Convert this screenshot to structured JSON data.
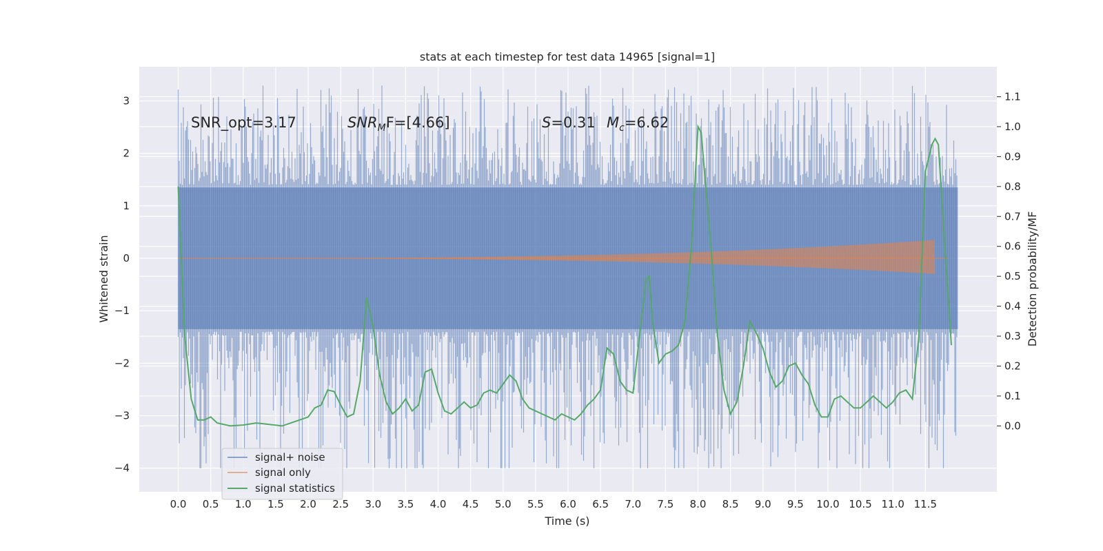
{
  "chart_data": {
    "type": "line",
    "title": "stats at each timestep for test data 14965 [signal=1]",
    "xlabel": "Time (s)",
    "ylabel_left": "Whitened strain",
    "ylabel_right": "Detection probability/MF",
    "xlim": [
      -0.6,
      12.6
    ],
    "ylim_left": [
      -4.45,
      3.65
    ],
    "ylim_right": [
      -0.22,
      1.2
    ],
    "x_ticks": [
      0.0,
      0.5,
      1.0,
      1.5,
      2.0,
      2.5,
      3.0,
      3.5,
      4.0,
      4.5,
      5.0,
      5.5,
      6.0,
      6.5,
      7.0,
      7.5,
      8.0,
      8.5,
      9.0,
      9.5,
      10.0,
      10.5,
      11.0,
      11.5
    ],
    "x_tick_labels": [
      "0.0",
      "0.5",
      "1.0",
      "1.5",
      "2.0",
      "2.5",
      "3.0",
      "3.5",
      "4.0",
      "4.5",
      "5.0",
      "5.5",
      "6.0",
      "6.5",
      "7.0",
      "7.5",
      "8.0",
      "8.5",
      "9.0",
      "9.5",
      "10.0",
      "10.5",
      "11.0",
      "11.5"
    ],
    "y_left_ticks": [
      3,
      2,
      1,
      0,
      -1,
      -2,
      -3,
      -4
    ],
    "y_left_tick_labels": [
      "3",
      "2",
      "1",
      "0",
      "−1",
      "−2",
      "−3",
      "−4"
    ],
    "y_right_ticks": [
      1.1,
      1.0,
      0.9,
      0.8,
      0.7,
      0.6,
      0.5,
      0.4,
      0.3,
      0.2,
      0.1,
      0.0
    ],
    "y_right_tick_labels": [
      "1.1",
      "1.0",
      "0.9",
      "0.8",
      "0.7",
      "0.6",
      "0.5",
      "0.4",
      "0.3",
      "0.2",
      "0.1",
      "0.0"
    ],
    "grid": true,
    "legend_position": "lower-left",
    "annotations": {
      "snr_opt": "SNR_opt=3.17",
      "snr_mf_main": "SNR",
      "snr_mf_sub": "M",
      "snr_mf_rest": "F=[4.66]",
      "s_main": "S",
      "s_rest": "=0.31",
      "mc_main": "M",
      "mc_sub": "c",
      "mc_rest": "=6.62"
    },
    "series": [
      {
        "name": "signal+ noise",
        "color": "#4c72b0",
        "kind": "noise_band",
        "x_range": [
          0.0,
          12.0
        ],
        "band_low": -1.35,
        "band_high": 1.35,
        "peak_max": 3.3,
        "peak_min": -4.0
      },
      {
        "name": "signal only",
        "color": "#dd8452",
        "kind": "chirp",
        "x_range": [
          0.0,
          11.85
        ],
        "peak_time": 11.65,
        "max_amplitude": 0.35
      },
      {
        "name": "signal statistics",
        "color": "#55a868",
        "axis": "right",
        "x": [
          0.0,
          0.1,
          0.2,
          0.3,
          0.4,
          0.5,
          0.6,
          0.8,
          1.0,
          1.2,
          1.4,
          1.6,
          1.8,
          2.0,
          2.1,
          2.2,
          2.3,
          2.4,
          2.5,
          2.6,
          2.7,
          2.8,
          2.9,
          3.0,
          3.1,
          3.2,
          3.3,
          3.4,
          3.5,
          3.6,
          3.7,
          3.8,
          3.9,
          4.0,
          4.1,
          4.2,
          4.3,
          4.4,
          4.5,
          4.6,
          4.7,
          4.8,
          4.9,
          5.0,
          5.1,
          5.2,
          5.3,
          5.4,
          5.5,
          5.6,
          5.7,
          5.8,
          5.9,
          6.0,
          6.1,
          6.2,
          6.3,
          6.4,
          6.5,
          6.6,
          6.7,
          6.8,
          6.9,
          7.0,
          7.1,
          7.2,
          7.25,
          7.3,
          7.4,
          7.5,
          7.6,
          7.7,
          7.8,
          7.9,
          8.0,
          8.05,
          8.1,
          8.2,
          8.3,
          8.4,
          8.5,
          8.6,
          8.7,
          8.8,
          8.9,
          9.0,
          9.1,
          9.2,
          9.3,
          9.4,
          9.5,
          9.6,
          9.7,
          9.8,
          9.9,
          10.0,
          10.1,
          10.2,
          10.3,
          10.4,
          10.5,
          10.6,
          10.7,
          10.8,
          10.9,
          11.0,
          11.1,
          11.2,
          11.3,
          11.4,
          11.5,
          11.6,
          11.65,
          11.7,
          11.8,
          11.9
        ],
        "y": [
          0.8,
          0.3,
          0.09,
          0.02,
          0.02,
          0.03,
          0.01,
          0.0,
          0.003,
          0.01,
          0.005,
          0.0,
          0.015,
          0.03,
          0.06,
          0.07,
          0.12,
          0.115,
          0.07,
          0.03,
          0.04,
          0.15,
          0.43,
          0.33,
          0.17,
          0.08,
          0.04,
          0.06,
          0.09,
          0.05,
          0.07,
          0.18,
          0.19,
          0.11,
          0.05,
          0.04,
          0.06,
          0.08,
          0.06,
          0.07,
          0.11,
          0.12,
          0.11,
          0.14,
          0.17,
          0.15,
          0.09,
          0.06,
          0.05,
          0.04,
          0.03,
          0.02,
          0.04,
          0.03,
          0.02,
          0.04,
          0.07,
          0.09,
          0.12,
          0.26,
          0.24,
          0.15,
          0.12,
          0.11,
          0.3,
          0.49,
          0.5,
          0.35,
          0.21,
          0.24,
          0.25,
          0.27,
          0.35,
          0.6,
          1.0,
          0.98,
          0.85,
          0.6,
          0.3,
          0.12,
          0.04,
          0.08,
          0.2,
          0.35,
          0.31,
          0.26,
          0.18,
          0.13,
          0.15,
          0.2,
          0.21,
          0.17,
          0.14,
          0.07,
          0.03,
          0.03,
          0.09,
          0.1,
          0.08,
          0.06,
          0.06,
          0.08,
          0.1,
          0.08,
          0.06,
          0.08,
          0.11,
          0.12,
          0.09,
          0.3,
          0.85,
          0.94,
          0.96,
          0.94,
          0.6,
          0.27
        ]
      }
    ]
  }
}
